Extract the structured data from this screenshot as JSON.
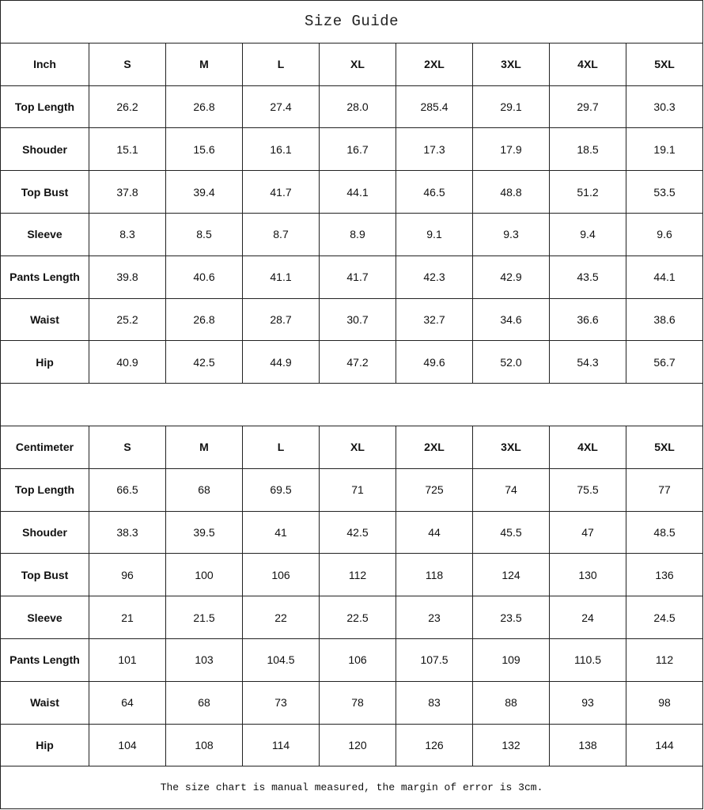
{
  "title": "Size Guide",
  "sizes": [
    "S",
    "M",
    "L",
    "XL",
    "2XL",
    "3XL",
    "4XL",
    "5XL"
  ],
  "tables": [
    {
      "unit": "Inch",
      "rows": [
        {
          "label": "Top Length",
          "values": [
            "26.2",
            "26.8",
            "27.4",
            "28.0",
            "285.4",
            "29.1",
            "29.7",
            "30.3"
          ]
        },
        {
          "label": "Shouder",
          "values": [
            "15.1",
            "15.6",
            "16.1",
            "16.7",
            "17.3",
            "17.9",
            "18.5",
            "19.1"
          ]
        },
        {
          "label": "Top Bust",
          "values": [
            "37.8",
            "39.4",
            "41.7",
            "44.1",
            "46.5",
            "48.8",
            "51.2",
            "53.5"
          ]
        },
        {
          "label": "Sleeve",
          "values": [
            "8.3",
            "8.5",
            "8.7",
            "8.9",
            "9.1",
            "9.3",
            "9.4",
            "9.6"
          ]
        },
        {
          "label": "Pants Length",
          "values": [
            "39.8",
            "40.6",
            "41.1",
            "41.7",
            "42.3",
            "42.9",
            "43.5",
            "44.1"
          ]
        },
        {
          "label": "Waist",
          "values": [
            "25.2",
            "26.8",
            "28.7",
            "30.7",
            "32.7",
            "34.6",
            "36.6",
            "38.6"
          ]
        },
        {
          "label": "Hip",
          "values": [
            "40.9",
            "42.5",
            "44.9",
            "47.2",
            "49.6",
            "52.0",
            "54.3",
            "56.7"
          ]
        }
      ]
    },
    {
      "unit": "Centimeter",
      "rows": [
        {
          "label": "Top Length",
          "values": [
            "66.5",
            "68",
            "69.5",
            "71",
            "725",
            "74",
            "75.5",
            "77"
          ]
        },
        {
          "label": "Shouder",
          "values": [
            "38.3",
            "39.5",
            "41",
            "42.5",
            "44",
            "45.5",
            "47",
            "48.5"
          ]
        },
        {
          "label": "Top Bust",
          "values": [
            "96",
            "100",
            "106",
            "112",
            "118",
            "124",
            "130",
            "136"
          ]
        },
        {
          "label": "Sleeve",
          "values": [
            "21",
            "21.5",
            "22",
            "22.5",
            "23",
            "23.5",
            "24",
            "24.5"
          ]
        },
        {
          "label": "Pants Length",
          "values": [
            "101",
            "103",
            "104.5",
            "106",
            "107.5",
            "109",
            "110.5",
            "112"
          ]
        },
        {
          "label": "Waist",
          "values": [
            "64",
            "68",
            "73",
            "78",
            "83",
            "88",
            "93",
            "98"
          ]
        },
        {
          "label": "Hip",
          "values": [
            "104",
            "108",
            "114",
            "120",
            "126",
            "132",
            "138",
            "144"
          ]
        }
      ]
    }
  ],
  "note": "The size chart is manual measured, the margin of error is 3cm."
}
